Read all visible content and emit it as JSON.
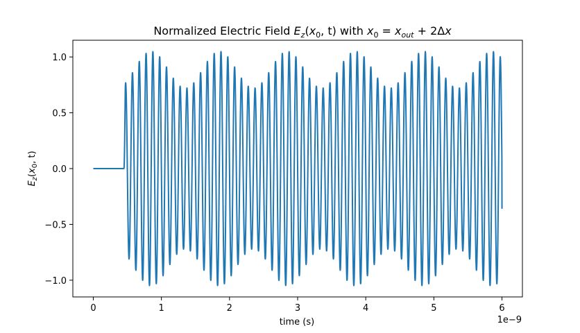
{
  "chart_data": {
    "type": "line",
    "title": "Normalized Electric Field E_z(x_0, t) with x_0 = x_out + 2Δx",
    "title_parts": {
      "prefix": "Normalized Electric Field ",
      "field_symbol": "E",
      "field_sub": "z",
      "field_args_open": "(",
      "field_arg1": "x",
      "field_arg1_sub": "0",
      "field_args_rest": ", t)",
      "middle": " with ",
      "x0": "x",
      "x0_sub": "0",
      "eq": " = ",
      "xout": "x",
      "xout_sub": "out",
      "plus": " + 2Δ",
      "dx": "x"
    },
    "xlabel": "time (s)",
    "ylabel": "E_z(x_0, t)",
    "ylabel_parts": {
      "symbol": "E",
      "sub": "z",
      "open": "(",
      "arg": "x",
      "arg_sub": "0",
      "rest": ", t)"
    },
    "x_offset_label": "1e−9",
    "xlim": [
      -0.3,
      6.3
    ],
    "ylim": [
      -1.15,
      1.15
    ],
    "x_ticks": [
      0,
      1,
      2,
      3,
      4,
      5,
      6
    ],
    "x_tick_labels": [
      "0",
      "1",
      "2",
      "3",
      "4",
      "5",
      "6"
    ],
    "y_ticks": [
      -1.0,
      -0.5,
      0.0,
      0.5,
      1.0
    ],
    "y_tick_labels": [
      "−1.0",
      "−0.5",
      "0.0",
      "0.5",
      "1.0"
    ],
    "grid": false,
    "series": [
      {
        "color": "#1f77b4",
        "x_unit_scale": "1e-9 s",
        "t_start": 0.0,
        "t_end": 6.0,
        "onset_time": 0.45,
        "carrier_period": 0.1,
        "amplitude_max": 1.05,
        "amplitude_min": 0.72,
        "envelope_period": 1.0,
        "envelope_peak_time": 0.85,
        "final_value": -0.36
      }
    ]
  }
}
